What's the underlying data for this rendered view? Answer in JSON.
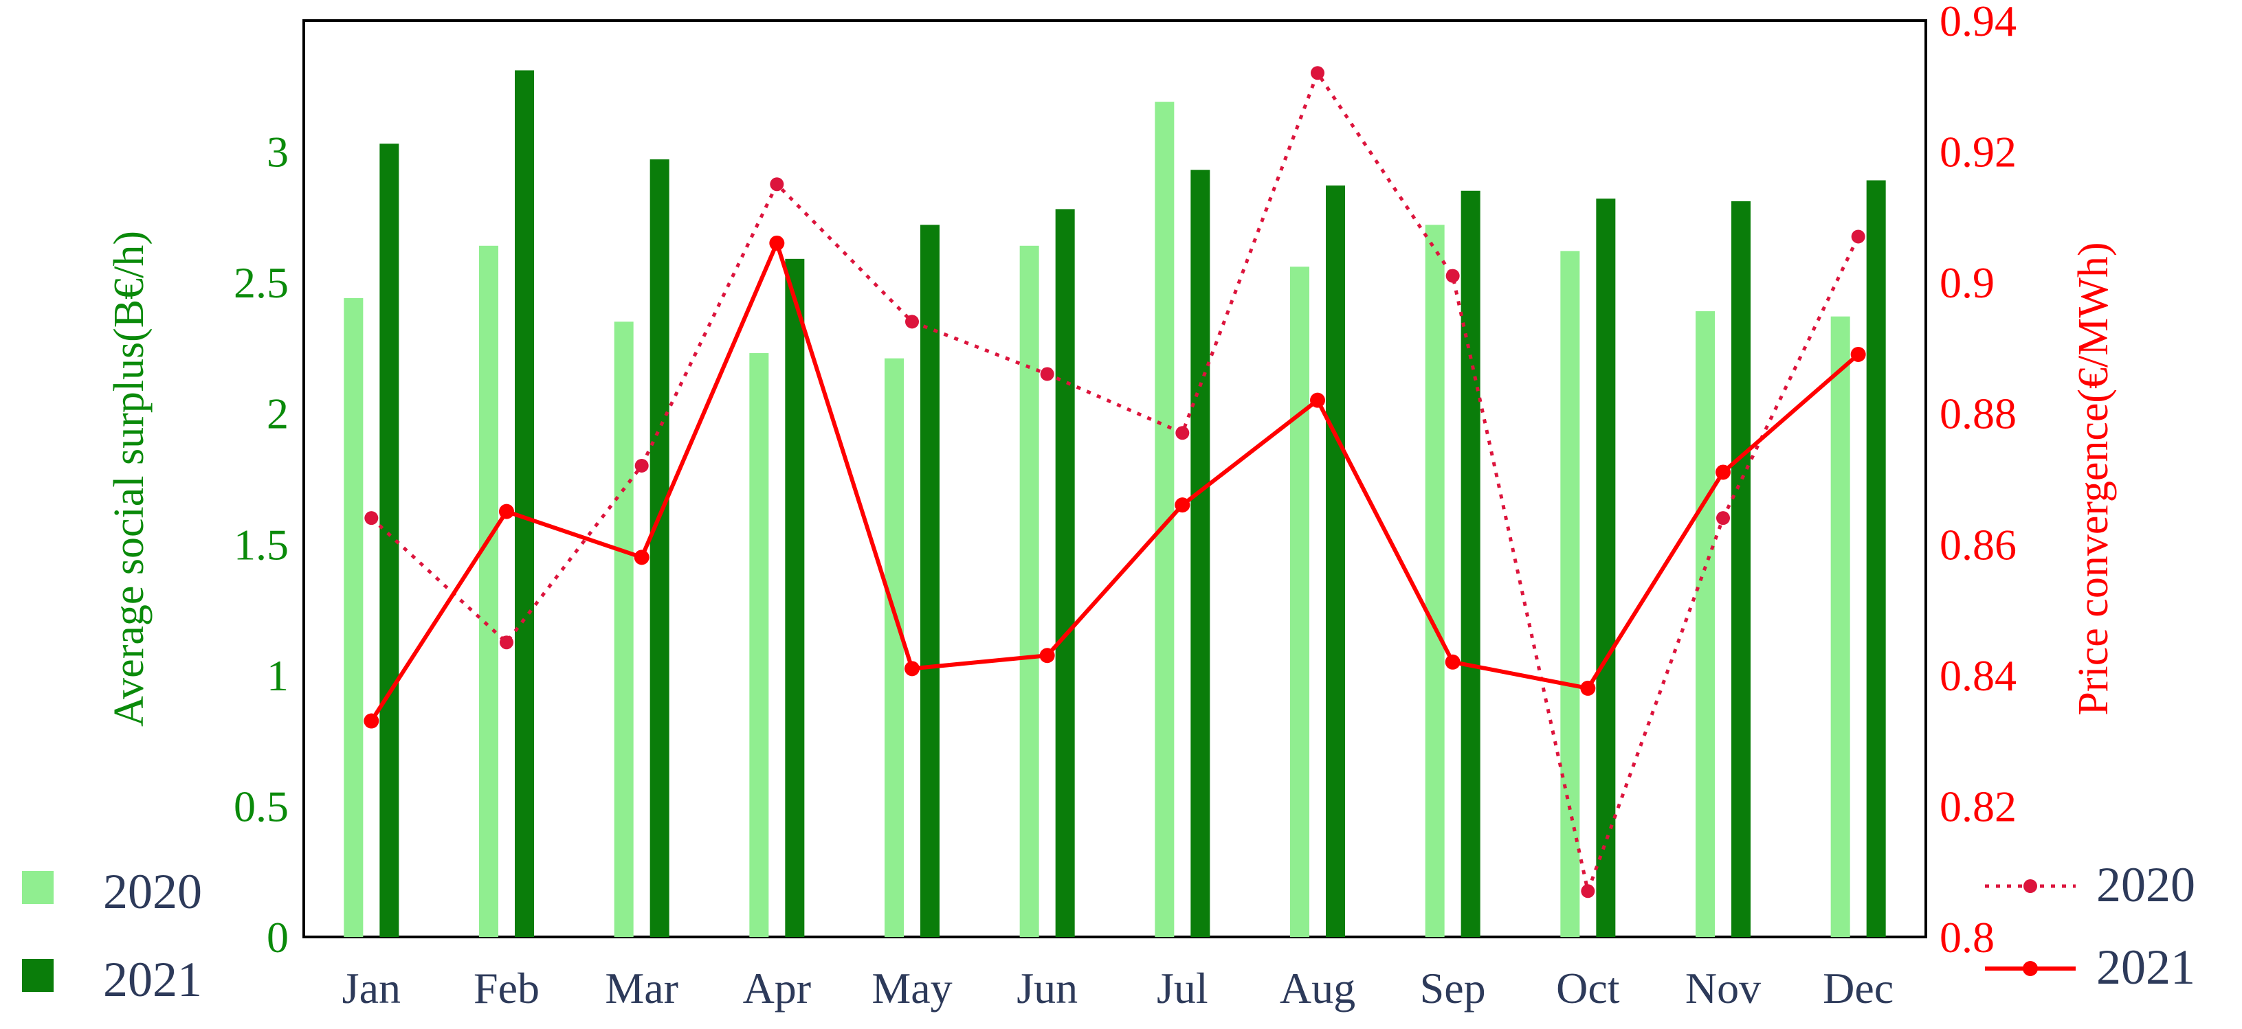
{
  "chart_data": {
    "type": "bar",
    "categories": [
      "Jan",
      "Feb",
      "Mar",
      "Apr",
      "May",
      "Jun",
      "Jul",
      "Aug",
      "Sep",
      "Oct",
      "Nov",
      "Dec"
    ],
    "bar_series": [
      {
        "name": "2020",
        "color": "#90ee90",
        "values": [
          2.44,
          2.64,
          2.35,
          2.23,
          2.21,
          2.64,
          3.19,
          2.56,
          2.72,
          2.62,
          2.39,
          2.37
        ]
      },
      {
        "name": "2021",
        "color": "#0a7d0a",
        "values": [
          3.03,
          3.31,
          2.97,
          2.59,
          2.72,
          2.78,
          2.93,
          2.87,
          2.85,
          2.82,
          2.81,
          2.89
        ]
      }
    ],
    "line_series": [
      {
        "name": "2020",
        "color": "#dc143c",
        "style": "dotted",
        "values": [
          0.864,
          0.845,
          0.872,
          0.915,
          0.894,
          0.886,
          0.877,
          0.932,
          0.901,
          0.807,
          0.864,
          0.907
        ]
      },
      {
        "name": "2021",
        "color": "#ff0000",
        "style": "solid",
        "values": [
          0.833,
          0.865,
          0.858,
          0.906,
          0.841,
          0.843,
          0.866,
          0.882,
          0.842,
          0.838,
          0.871,
          0.889
        ]
      }
    ],
    "left_axis": {
      "label": "Average social surplus(B€/h)",
      "color": "#0a8a0a",
      "ylim": [
        0,
        3.5
      ],
      "ticks": [
        0,
        0.5,
        1,
        1.5,
        2,
        2.5,
        3
      ],
      "tick_labels": [
        "0",
        "0.5",
        "1",
        "1.5",
        "2",
        "2.5",
        "3"
      ]
    },
    "right_axis": {
      "label": "Price convergence(€/MWh)",
      "color": "#ff0000",
      "ylim": [
        0.8,
        0.94
      ],
      "ticks": [
        0.8,
        0.82,
        0.84,
        0.86,
        0.88,
        0.9,
        0.92,
        0.94
      ],
      "tick_labels": [
        "0.8",
        "0.82",
        "0.84",
        "0.86",
        "0.88",
        "0.9",
        "0.92",
        "0.94"
      ]
    },
    "grid": false,
    "bar_legend_position": "bottom-left",
    "line_legend_position": "bottom-right",
    "text_color": "#2d3a5a"
  }
}
